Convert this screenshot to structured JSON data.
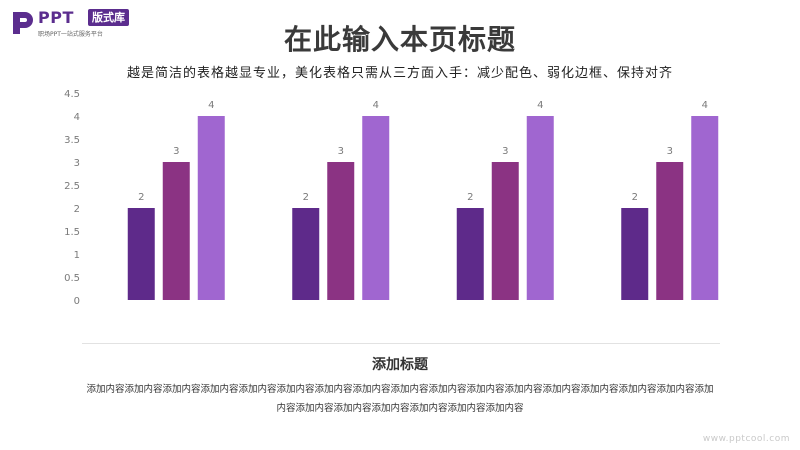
{
  "logo": {
    "brand": "PPT",
    "badge": "版式库",
    "tagline": "职场PPT一站式服务平台"
  },
  "title": "在此输入本页标题",
  "subtitle": "越是简洁的表格越显专业，美化表格只需从三方面入手：减少配色、弱化边框、保持对齐",
  "section": {
    "title": "添加标题",
    "body": "添加内容添加内容添加内容添加内容添加内容添加内容添加内容添加内容添加内容添加内容添加内容添加内容添加内容添加内容添加内容添加内容添加内容添加内容添加内容添加内容添加内容添加内容添加内容"
  },
  "watermark": "www.pptcool.com",
  "colors": {
    "series1": "#5e2a8a",
    "series2": "#8b3383",
    "series3": "#a066d0",
    "brand": "#5b2d8e"
  },
  "chart_data": {
    "type": "bar",
    "categories": [
      "",
      "",
      "",
      ""
    ],
    "series": [
      {
        "values": [
          2,
          2,
          2,
          2
        ]
      },
      {
        "values": [
          3,
          3,
          3,
          3
        ]
      },
      {
        "values": [
          4,
          4,
          4,
          4
        ]
      }
    ],
    "ylim": [
      0,
      4.5
    ],
    "yticks": [
      "0",
      "0.5",
      "1",
      "1.5",
      "2",
      "2.5",
      "3",
      "3.5",
      "4",
      "4.5"
    ],
    "data_labels": true,
    "grid": false,
    "legend": "none"
  }
}
